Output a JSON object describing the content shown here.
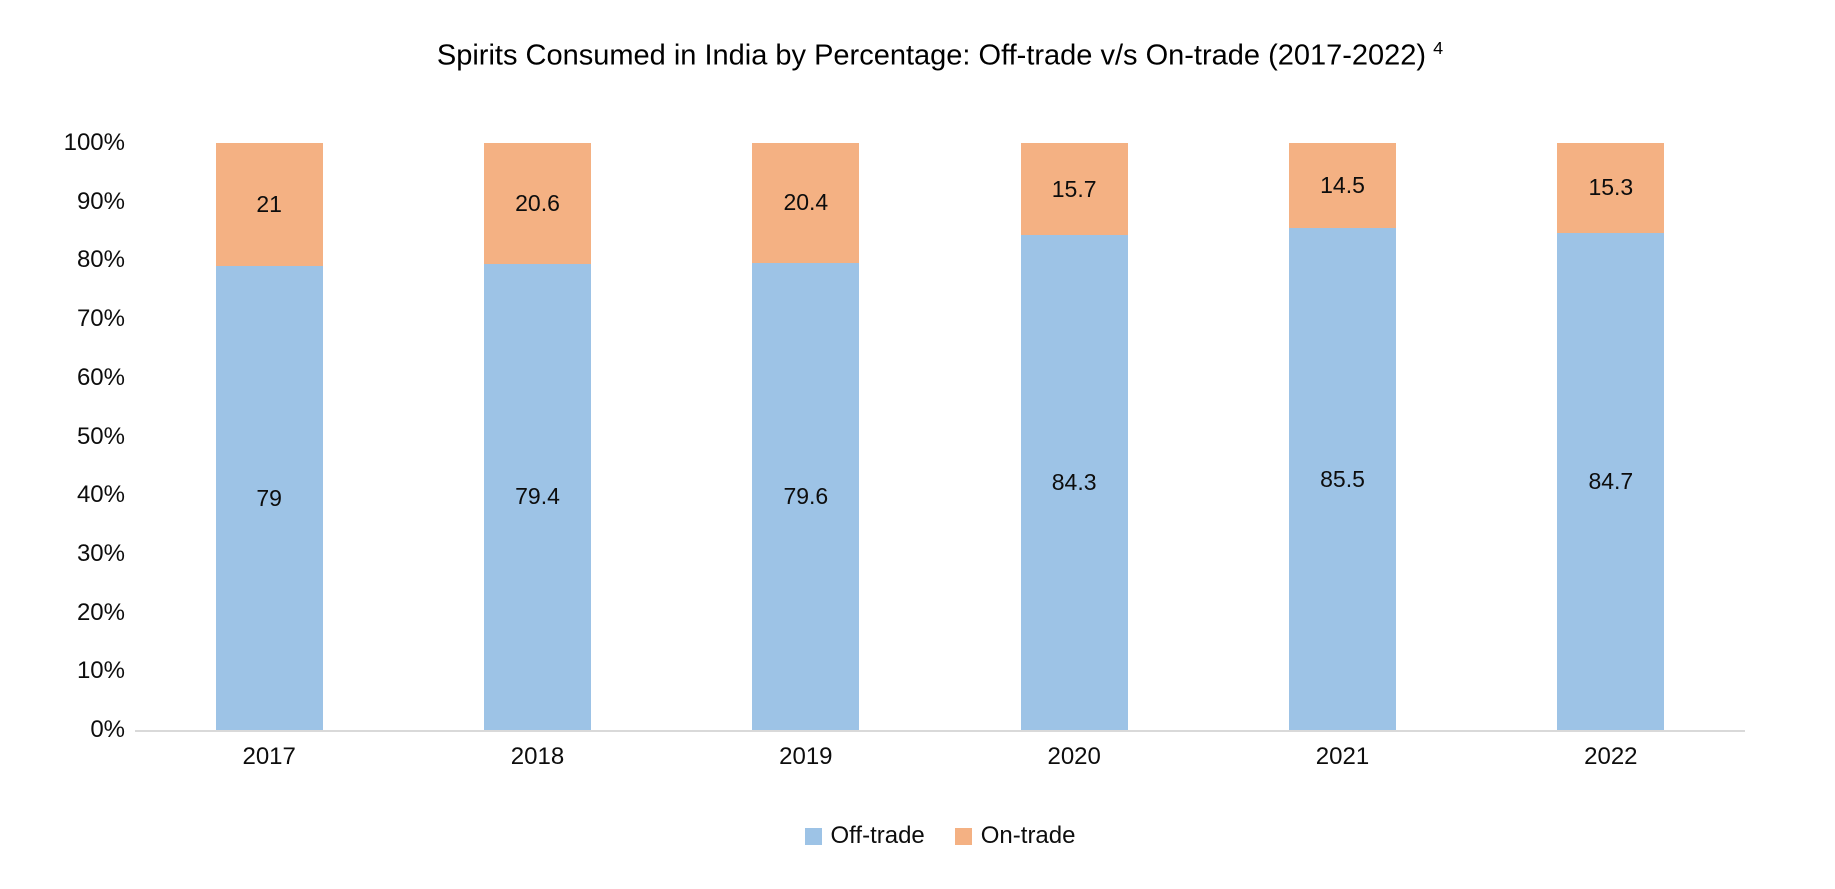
{
  "title": {
    "text": "Spirits Consumed in India by Percentage: Off-trade v/s On-trade (2017-2022)",
    "superscript": "4"
  },
  "chart_data": {
    "type": "bar",
    "stacked": true,
    "unit": "percent",
    "title": "Spirits Consumed in India by Percentage: Off-trade v/s On-trade (2017-2022)",
    "title_superscript": "4",
    "categories": [
      "2017",
      "2018",
      "2019",
      "2020",
      "2021",
      "2022"
    ],
    "series": [
      {
        "name": "Off-trade",
        "color": "#9DC3E6",
        "values": [
          79,
          79.4,
          79.6,
          84.3,
          85.5,
          84.7
        ]
      },
      {
        "name": "On-trade",
        "color": "#F4B183",
        "values": [
          21,
          20.6,
          20.4,
          15.7,
          14.5,
          15.3
        ]
      }
    ],
    "xlabel": "",
    "ylabel": "",
    "ylim": [
      0,
      100
    ],
    "yticks": [
      "0%",
      "10%",
      "20%",
      "30%",
      "40%",
      "50%",
      "60%",
      "70%",
      "80%",
      "90%",
      "100%"
    ],
    "grid": false,
    "axis_line_color": "#D9D9D9",
    "legend_position": "bottom",
    "data_labels": "inside-center"
  }
}
